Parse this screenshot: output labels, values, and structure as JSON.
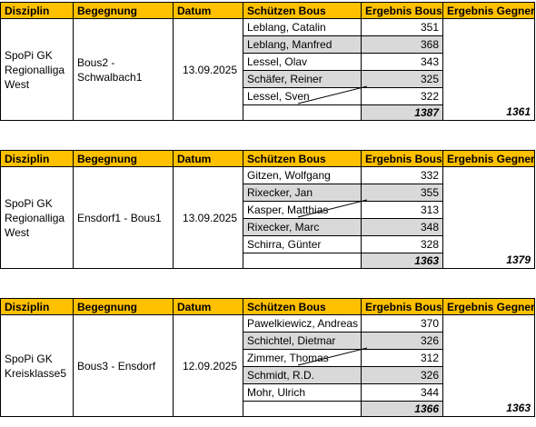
{
  "headers": [
    "Disziplin",
    "Begegnung",
    "Datum",
    "Schützen Bous",
    "Ergebnis Bous",
    "Ergebnis Gegner"
  ],
  "matches": [
    {
      "disziplin": "SpoPi GK Regionalliga West",
      "begegnung": "Bous2 - Schwalbach1",
      "datum": "13.09.2025",
      "shooters": [
        {
          "name": "Leblang, Catalin",
          "score": "351"
        },
        {
          "name": "Leblang, Manfred",
          "score": "368"
        },
        {
          "name": "Lessel, Olav",
          "score": "343"
        },
        {
          "name": "Schäfer, Reiner",
          "score": "325"
        },
        {
          "name": "Lessel, Sven",
          "score": "322"
        }
      ],
      "total_bous": "1387",
      "total_gegner": "1361"
    },
    {
      "disziplin": "SpoPi GK Regionalliga West",
      "begegnung": "Ensdorf1 - Bous1",
      "datum": "13.09.2025",
      "shooters": [
        {
          "name": "Gitzen, Wolfgang",
          "score": "332"
        },
        {
          "name": "Rixecker, Jan",
          "score": "355"
        },
        {
          "name": "Kasper, Matthias",
          "score": "313"
        },
        {
          "name": "Rixecker, Marc",
          "score": "348"
        },
        {
          "name": "Schirra, Günter",
          "score": "328"
        }
      ],
      "total_bous": "1363",
      "total_gegner": "1379"
    },
    {
      "disziplin": "SpoPi GK Kreisklasse5",
      "begegnung": "Bous3 - Ensdorf",
      "datum": "12.09.2025",
      "shooters": [
        {
          "name": "Pawelkiewicz, Andreas",
          "score": "370"
        },
        {
          "name": "Schichtel, Dietmar",
          "score": "326"
        },
        {
          "name": "Zimmer, Thomas",
          "score": "312"
        },
        {
          "name": "Schmidt, R.D.",
          "score": "326"
        },
        {
          "name": "Mohr, Ulrich",
          "score": "344"
        }
      ],
      "total_bous": "1366",
      "total_gegner": "1363"
    }
  ],
  "colors": {
    "header_bg": "#ffc000",
    "gray_row": "#d9d9d9",
    "border": "#000000"
  }
}
